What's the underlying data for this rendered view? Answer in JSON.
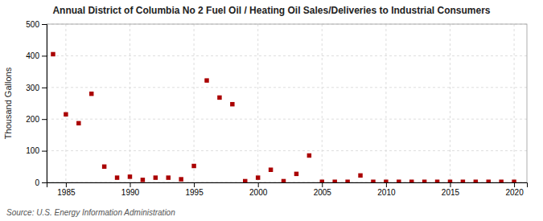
{
  "chart_data": {
    "type": "scatter",
    "title": "Annual District of Columbia No 2 Fuel Oil / Heating Oil Sales/Deliveries to Industrial Consumers",
    "ylabel": "Thousand Gallons",
    "annotation": "Source: U.S. Energy Information Administration",
    "x": [
      1984,
      1985,
      1986,
      1987,
      1988,
      1989,
      1990,
      1991,
      1992,
      1993,
      1994,
      1995,
      1996,
      1997,
      1998,
      1999,
      2000,
      2001,
      2002,
      2003,
      2004,
      2005,
      2006,
      2007,
      2008,
      2009,
      2010,
      2011,
      2012,
      2013,
      2014,
      2015,
      2016,
      2017,
      2018,
      2019,
      2020
    ],
    "values": [
      405,
      215,
      187,
      280,
      50,
      15,
      18,
      8,
      15,
      15,
      10,
      52,
      322,
      268,
      247,
      4,
      15,
      40,
      4,
      27,
      85,
      2,
      2,
      2,
      22,
      2,
      2,
      2,
      2,
      2,
      2,
      2,
      2,
      2,
      2,
      2,
      2
    ],
    "color": "#aa0000",
    "marker": "square",
    "xlim": [
      1983.5,
      2021
    ],
    "ylim": [
      0,
      500
    ],
    "xticks": [
      1985,
      1990,
      1995,
      2000,
      2005,
      2010,
      2015,
      2020
    ],
    "yticks": [
      0,
      100,
      200,
      300,
      400,
      500
    ],
    "grid": true
  }
}
